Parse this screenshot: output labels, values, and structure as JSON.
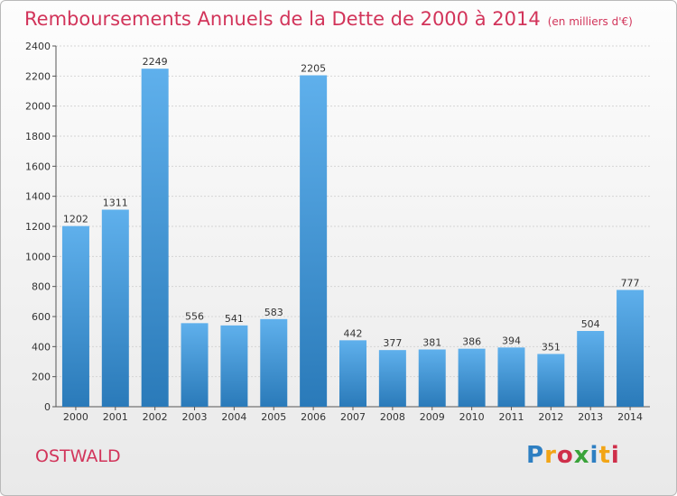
{
  "title": "Remboursements Annuels de la Dette de 2000 à 2014",
  "unit": "(en milliers d'€)",
  "commune": "OSTWALD",
  "logo": {
    "text": "Proxiti",
    "colors": [
      "#2e7fc2",
      "#f2a516",
      "#cf2f4a",
      "#3aa33a",
      "#2e7fc2",
      "#f2a516",
      "#cf2f4a"
    ]
  },
  "colors": {
    "title": "#d2345a",
    "bar_top": "#5fb0ec",
    "bar_bottom": "#2a7ab9",
    "grid": "#d5d5d5"
  },
  "chart_data": {
    "type": "bar",
    "categories": [
      "2000",
      "2001",
      "2002",
      "2003",
      "2004",
      "2005",
      "2006",
      "2007",
      "2008",
      "2009",
      "2010",
      "2011",
      "2012",
      "2013",
      "2014"
    ],
    "values": [
      1202,
      1311,
      2249,
      556,
      541,
      583,
      2205,
      442,
      377,
      381,
      386,
      394,
      351,
      504,
      777
    ],
    "yticks": [
      0,
      200,
      400,
      600,
      800,
      1000,
      1200,
      1400,
      1600,
      1800,
      2000,
      2200,
      2400
    ],
    "ylim": [
      0,
      2400
    ],
    "grid": true
  }
}
